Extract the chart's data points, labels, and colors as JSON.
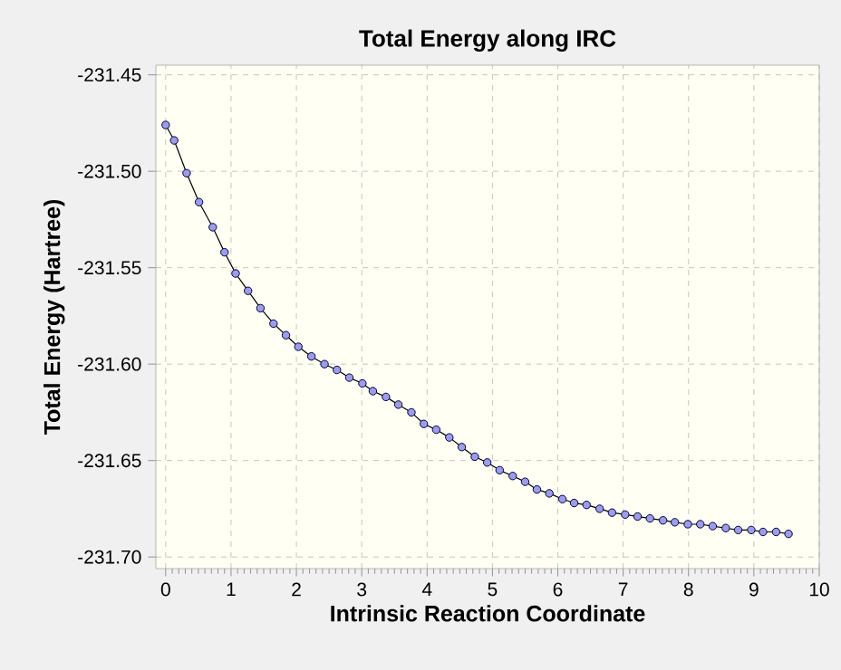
{
  "chart_data": {
    "type": "line",
    "title": "Total Energy along IRC",
    "xlabel": "Intrinsic Reaction Coordinate",
    "ylabel": "Total Energy (Hartree)",
    "x": [
      0,
      0.13,
      0.32,
      0.51,
      0.72,
      0.9,
      1.07,
      1.26,
      1.45,
      1.65,
      1.84,
      2.03,
      2.23,
      2.43,
      2.62,
      2.81,
      3.01,
      3.17,
      3.37,
      3.56,
      3.76,
      3.95,
      4.14,
      4.34,
      4.53,
      4.73,
      4.92,
      5.11,
      5.31,
      5.5,
      5.68,
      5.87,
      6.07,
      6.25,
      6.44,
      6.64,
      6.83,
      7.03,
      7.22,
      7.41,
      7.61,
      7.79,
      7.99,
      8.18,
      8.37,
      8.57,
      8.76,
      8.96,
      9.14,
      9.34,
      9.53
    ],
    "series": [
      {
        "color": "#9c9cec",
        "values": [
          -231.476,
          -231.484,
          -231.501,
          -231.516,
          -231.529,
          -231.542,
          -231.553,
          -231.562,
          -231.571,
          -231.579,
          -231.585,
          -231.591,
          -231.596,
          -231.6,
          -231.603,
          -231.607,
          -231.61,
          -231.614,
          -231.617,
          -231.621,
          -231.625,
          -231.631,
          -231.634,
          -231.638,
          -231.643,
          -231.648,
          -231.651,
          -231.655,
          -231.658,
          -231.661,
          -231.665,
          -231.667,
          -231.67,
          -231.672,
          -231.673,
          -231.675,
          -231.677,
          -231.678,
          -231.679,
          -231.68,
          -231.681,
          -231.682,
          -231.683,
          -231.683,
          -231.684,
          -231.685,
          -231.686,
          -231.686,
          -231.687,
          -231.687,
          -231.688
        ]
      }
    ],
    "xlim": [
      -0.15,
      10
    ],
    "xticks": [
      0,
      1,
      2,
      3,
      4,
      5,
      6,
      7,
      8,
      9,
      10
    ],
    "ylim": [
      -231.706,
      -231.445
    ],
    "yticks": [
      -231.45,
      {
        "value": -231.5,
        "label": "-231.50"
      },
      -231.55,
      {
        "value": -231.6,
        "label": "-231.60"
      },
      -231.65,
      {
        "value": -231.7,
        "label": "-231.70"
      }
    ],
    "grid": true,
    "marker": "circle",
    "line_style": "solid"
  }
}
